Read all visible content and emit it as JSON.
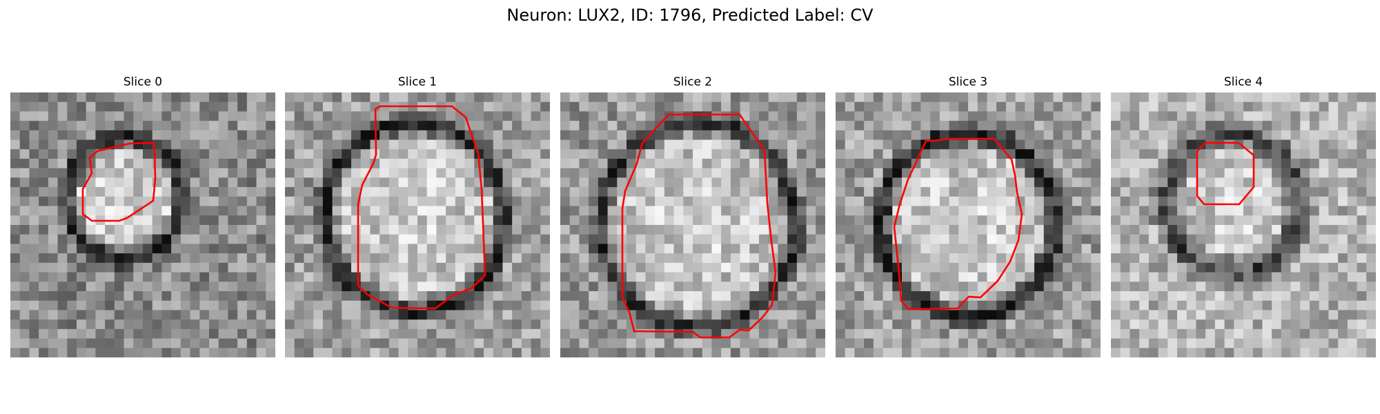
{
  "figure": {
    "title": "Neuron: LUX2, ID: 1796, Predicted Label: CV"
  },
  "panels": [
    {
      "title": "Slice 0",
      "contour_color": "#ff0000"
    },
    {
      "title": "Slice 1",
      "contour_color": "#ff0000"
    },
    {
      "title": "Slice 2",
      "contour_color": "#ff0000"
    },
    {
      "title": "Slice 3",
      "contour_color": "#ff0000"
    },
    {
      "title": "Slice 4",
      "contour_color": "#ff0000"
    }
  ]
}
